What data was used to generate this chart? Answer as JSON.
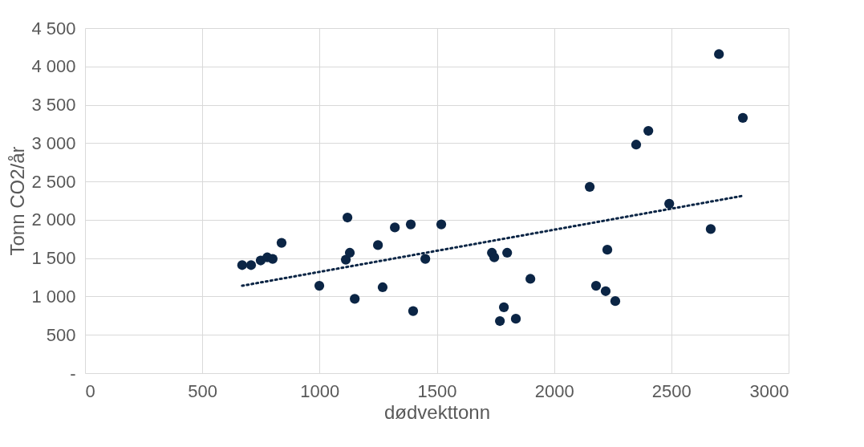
{
  "chart_data": {
    "type": "scatter",
    "xlabel": "dødvekttonn",
    "ylabel": "Tonn CO2/år",
    "xlim": [
      0,
      3000
    ],
    "xticks": [
      0,
      500,
      1000,
      1500,
      2000,
      2500,
      3000
    ],
    "ylim": [
      0,
      4500
    ],
    "yticks": [
      {
        "value": 0,
        "label": "-"
      },
      {
        "value": 500,
        "label": "500"
      },
      {
        "value": 1000,
        "label": "1 000"
      },
      {
        "value": 1500,
        "label": "1 500"
      },
      {
        "value": 2000,
        "label": "2 000"
      },
      {
        "value": 2500,
        "label": "2 500"
      },
      {
        "value": 3000,
        "label": "3 000"
      },
      {
        "value": 3500,
        "label": "3 500"
      },
      {
        "value": 4000,
        "label": "4 000"
      },
      {
        "value": 4500,
        "label": "4 500"
      }
    ],
    "grid": true,
    "series": [
      {
        "color": "#0b2545",
        "marker": "circle",
        "x": [
          670,
          708,
          749,
          777,
          800,
          838,
          999,
          1112,
          1119,
          1129,
          1150,
          1249,
          1269,
          1321,
          1389,
          1399,
          1451,
          1519,
          1735,
          1745,
          1769,
          1786,
          1800,
          1837,
          1899,
          2152,
          2179,
          2220,
          2227,
          2261,
          2350,
          2402,
          2491,
          2668,
          2703,
          2805
        ],
        "values": [
          1410,
          1410,
          1470,
          1510,
          1490,
          1700,
          1140,
          1480,
          2030,
          1570,
          970,
          1670,
          1120,
          1900,
          1940,
          810,
          1490,
          1940,
          1570,
          1510,
          680,
          860,
          1570,
          710,
          1230,
          2430,
          1140,
          1070,
          1610,
          940,
          2980,
          3160,
          2210,
          1880,
          4160,
          3330
        ]
      },
      {
        "type": "line",
        "color": "#0b2545",
        "line_style": "dotted",
        "x": [
          670,
          2800
        ],
        "values": [
          1140,
          2310
        ]
      }
    ]
  }
}
